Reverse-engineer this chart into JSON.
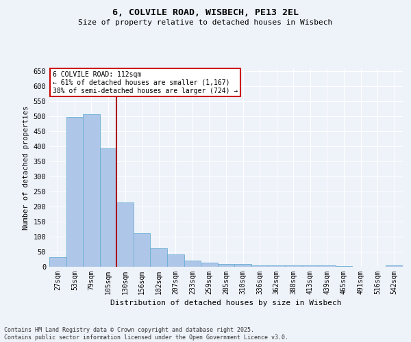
{
  "title": "6, COLVILE ROAD, WISBECH, PE13 2EL",
  "subtitle": "Size of property relative to detached houses in Wisbech",
  "xlabel": "Distribution of detached houses by size in Wisbech",
  "ylabel": "Number of detached properties",
  "categories": [
    "27sqm",
    "53sqm",
    "79sqm",
    "105sqm",
    "130sqm",
    "156sqm",
    "182sqm",
    "207sqm",
    "233sqm",
    "259sqm",
    "285sqm",
    "310sqm",
    "336sqm",
    "362sqm",
    "388sqm",
    "413sqm",
    "439sqm",
    "465sqm",
    "491sqm",
    "516sqm",
    "542sqm"
  ],
  "values": [
    32,
    498,
    507,
    393,
    213,
    111,
    62,
    42,
    20,
    14,
    8,
    8,
    5,
    5,
    4,
    4,
    4,
    2,
    1,
    1,
    4
  ],
  "bar_color": "#aec6e8",
  "bar_edge_color": "#6aafd4",
  "vline_color": "#aa0000",
  "annotation_text": "6 COLVILE ROAD: 112sqm\n← 61% of detached houses are smaller (1,167)\n38% of semi-detached houses are larger (724) →",
  "annotation_box_color": "#ffffff",
  "annotation_box_edge": "#cc0000",
  "footer": "Contains HM Land Registry data © Crown copyright and database right 2025.\nContains public sector information licensed under the Open Government Licence v3.0.",
  "bg_color": "#eef2f9",
  "grid_color": "#ffffff",
  "ylim": [
    0,
    660
  ],
  "yticks": [
    0,
    50,
    100,
    150,
    200,
    250,
    300,
    350,
    400,
    450,
    500,
    550,
    600,
    650
  ]
}
